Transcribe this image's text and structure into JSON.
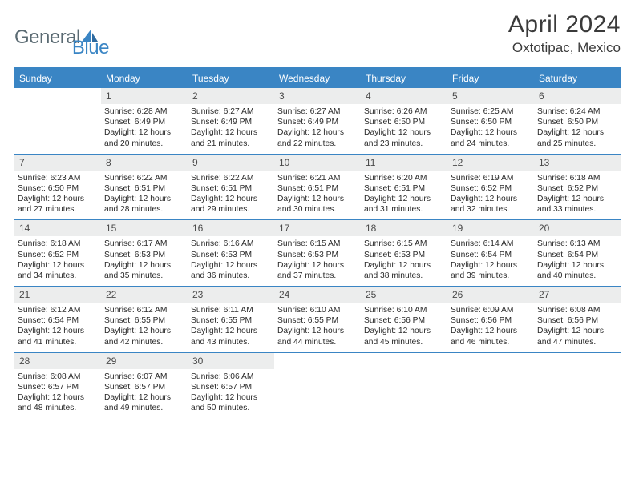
{
  "logo": {
    "text1": "General",
    "text2": "Blue"
  },
  "title": "April 2024",
  "location": "Oxtotipac, Mexico",
  "colors": {
    "brand": "#3a85c4",
    "logo_gray": "#5a6a72",
    "day_header_bg": "#eceded",
    "text": "#2a2a2a",
    "title_text": "#3a3a3a",
    "background": "#ffffff"
  },
  "weekdays": [
    "Sunday",
    "Monday",
    "Tuesday",
    "Wednesday",
    "Thursday",
    "Friday",
    "Saturday"
  ],
  "weeks": [
    [
      {
        "num": "",
        "sunrise": "",
        "sunset": "",
        "daylight": ""
      },
      {
        "num": "1",
        "sunrise": "Sunrise: 6:28 AM",
        "sunset": "Sunset: 6:49 PM",
        "daylight": "Daylight: 12 hours and 20 minutes."
      },
      {
        "num": "2",
        "sunrise": "Sunrise: 6:27 AM",
        "sunset": "Sunset: 6:49 PM",
        "daylight": "Daylight: 12 hours and 21 minutes."
      },
      {
        "num": "3",
        "sunrise": "Sunrise: 6:27 AM",
        "sunset": "Sunset: 6:49 PM",
        "daylight": "Daylight: 12 hours and 22 minutes."
      },
      {
        "num": "4",
        "sunrise": "Sunrise: 6:26 AM",
        "sunset": "Sunset: 6:50 PM",
        "daylight": "Daylight: 12 hours and 23 minutes."
      },
      {
        "num": "5",
        "sunrise": "Sunrise: 6:25 AM",
        "sunset": "Sunset: 6:50 PM",
        "daylight": "Daylight: 12 hours and 24 minutes."
      },
      {
        "num": "6",
        "sunrise": "Sunrise: 6:24 AM",
        "sunset": "Sunset: 6:50 PM",
        "daylight": "Daylight: 12 hours and 25 minutes."
      }
    ],
    [
      {
        "num": "7",
        "sunrise": "Sunrise: 6:23 AM",
        "sunset": "Sunset: 6:50 PM",
        "daylight": "Daylight: 12 hours and 27 minutes."
      },
      {
        "num": "8",
        "sunrise": "Sunrise: 6:22 AM",
        "sunset": "Sunset: 6:51 PM",
        "daylight": "Daylight: 12 hours and 28 minutes."
      },
      {
        "num": "9",
        "sunrise": "Sunrise: 6:22 AM",
        "sunset": "Sunset: 6:51 PM",
        "daylight": "Daylight: 12 hours and 29 minutes."
      },
      {
        "num": "10",
        "sunrise": "Sunrise: 6:21 AM",
        "sunset": "Sunset: 6:51 PM",
        "daylight": "Daylight: 12 hours and 30 minutes."
      },
      {
        "num": "11",
        "sunrise": "Sunrise: 6:20 AM",
        "sunset": "Sunset: 6:51 PM",
        "daylight": "Daylight: 12 hours and 31 minutes."
      },
      {
        "num": "12",
        "sunrise": "Sunrise: 6:19 AM",
        "sunset": "Sunset: 6:52 PM",
        "daylight": "Daylight: 12 hours and 32 minutes."
      },
      {
        "num": "13",
        "sunrise": "Sunrise: 6:18 AM",
        "sunset": "Sunset: 6:52 PM",
        "daylight": "Daylight: 12 hours and 33 minutes."
      }
    ],
    [
      {
        "num": "14",
        "sunrise": "Sunrise: 6:18 AM",
        "sunset": "Sunset: 6:52 PM",
        "daylight": "Daylight: 12 hours and 34 minutes."
      },
      {
        "num": "15",
        "sunrise": "Sunrise: 6:17 AM",
        "sunset": "Sunset: 6:53 PM",
        "daylight": "Daylight: 12 hours and 35 minutes."
      },
      {
        "num": "16",
        "sunrise": "Sunrise: 6:16 AM",
        "sunset": "Sunset: 6:53 PM",
        "daylight": "Daylight: 12 hours and 36 minutes."
      },
      {
        "num": "17",
        "sunrise": "Sunrise: 6:15 AM",
        "sunset": "Sunset: 6:53 PM",
        "daylight": "Daylight: 12 hours and 37 minutes."
      },
      {
        "num": "18",
        "sunrise": "Sunrise: 6:15 AM",
        "sunset": "Sunset: 6:53 PM",
        "daylight": "Daylight: 12 hours and 38 minutes."
      },
      {
        "num": "19",
        "sunrise": "Sunrise: 6:14 AM",
        "sunset": "Sunset: 6:54 PM",
        "daylight": "Daylight: 12 hours and 39 minutes."
      },
      {
        "num": "20",
        "sunrise": "Sunrise: 6:13 AM",
        "sunset": "Sunset: 6:54 PM",
        "daylight": "Daylight: 12 hours and 40 minutes."
      }
    ],
    [
      {
        "num": "21",
        "sunrise": "Sunrise: 6:12 AM",
        "sunset": "Sunset: 6:54 PM",
        "daylight": "Daylight: 12 hours and 41 minutes."
      },
      {
        "num": "22",
        "sunrise": "Sunrise: 6:12 AM",
        "sunset": "Sunset: 6:55 PM",
        "daylight": "Daylight: 12 hours and 42 minutes."
      },
      {
        "num": "23",
        "sunrise": "Sunrise: 6:11 AM",
        "sunset": "Sunset: 6:55 PM",
        "daylight": "Daylight: 12 hours and 43 minutes."
      },
      {
        "num": "24",
        "sunrise": "Sunrise: 6:10 AM",
        "sunset": "Sunset: 6:55 PM",
        "daylight": "Daylight: 12 hours and 44 minutes."
      },
      {
        "num": "25",
        "sunrise": "Sunrise: 6:10 AM",
        "sunset": "Sunset: 6:56 PM",
        "daylight": "Daylight: 12 hours and 45 minutes."
      },
      {
        "num": "26",
        "sunrise": "Sunrise: 6:09 AM",
        "sunset": "Sunset: 6:56 PM",
        "daylight": "Daylight: 12 hours and 46 minutes."
      },
      {
        "num": "27",
        "sunrise": "Sunrise: 6:08 AM",
        "sunset": "Sunset: 6:56 PM",
        "daylight": "Daylight: 12 hours and 47 minutes."
      }
    ],
    [
      {
        "num": "28",
        "sunrise": "Sunrise: 6:08 AM",
        "sunset": "Sunset: 6:57 PM",
        "daylight": "Daylight: 12 hours and 48 minutes."
      },
      {
        "num": "29",
        "sunrise": "Sunrise: 6:07 AM",
        "sunset": "Sunset: 6:57 PM",
        "daylight": "Daylight: 12 hours and 49 minutes."
      },
      {
        "num": "30",
        "sunrise": "Sunrise: 6:06 AM",
        "sunset": "Sunset: 6:57 PM",
        "daylight": "Daylight: 12 hours and 50 minutes."
      },
      {
        "num": "",
        "sunrise": "",
        "sunset": "",
        "daylight": ""
      },
      {
        "num": "",
        "sunrise": "",
        "sunset": "",
        "daylight": ""
      },
      {
        "num": "",
        "sunrise": "",
        "sunset": "",
        "daylight": ""
      },
      {
        "num": "",
        "sunrise": "",
        "sunset": "",
        "daylight": ""
      }
    ]
  ]
}
